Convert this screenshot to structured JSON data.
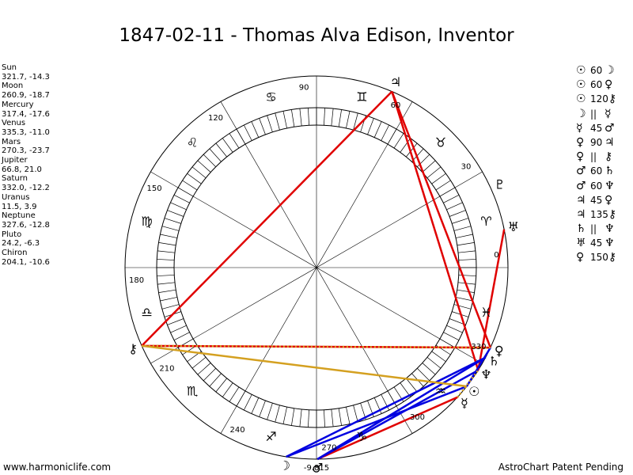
{
  "title": "1847-02-11 - Thomas Alva Edison, Inventor",
  "planets": [
    {
      "name": "Sun",
      "coord": "321.7, -14.3",
      "glyph": "☉",
      "lon": 321.7
    },
    {
      "name": "Moon",
      "coord": "260.9, -18.7",
      "glyph": "☽",
      "lon": 260.9
    },
    {
      "name": "Mercury",
      "coord": "317.4, -17.6",
      "glyph": "☿",
      "lon": 317.4
    },
    {
      "name": "Venus",
      "coord": "335.3, -11.0",
      "glyph": "♀",
      "lon": 335.3
    },
    {
      "name": "Mars",
      "coord": "270.3, -23.7",
      "glyph": "♂",
      "lon": 270.3
    },
    {
      "name": "Jupiter",
      "coord": "66.8, 21.0",
      "glyph": "♃",
      "lon": 66.8
    },
    {
      "name": "Saturn",
      "coord": "332.0, -12.2",
      "glyph": "♄",
      "lon": 332.0
    },
    {
      "name": "Uranus",
      "coord": "11.5, 3.9",
      "glyph": "♅",
      "lon": 11.5
    },
    {
      "name": "Neptune",
      "coord": "327.6, -12.8",
      "glyph": "♆",
      "lon": 327.6
    },
    {
      "name": "Pluto",
      "coord": "24.2, -6.3",
      "glyph": "♇",
      "lon": 24.2
    },
    {
      "name": "Chiron",
      "coord": "204.1, -10.6",
      "glyph": "⚷",
      "lon": 204.1
    }
  ],
  "aspects": [
    {
      "p1": "☉",
      "angle": "60",
      "p2": "☽"
    },
    {
      "p1": "☉",
      "angle": "60",
      "p2": "♀"
    },
    {
      "p1": "☉",
      "angle": "120",
      "p2": "⚷"
    },
    {
      "p1": "☽",
      "angle": "||",
      "p2": "☿"
    },
    {
      "p1": "☿",
      "angle": "45",
      "p2": "♂"
    },
    {
      "p1": "♀",
      "angle": "90",
      "p2": "♃"
    },
    {
      "p1": "♀",
      "angle": "||",
      "p2": "⚷"
    },
    {
      "p1": "♂",
      "angle": "60",
      "p2": "♄"
    },
    {
      "p1": "♂",
      "angle": "60",
      "p2": "♆"
    },
    {
      "p1": "♃",
      "angle": "45",
      "p2": "♀"
    },
    {
      "p1": "♃",
      "angle": "135",
      "p2": "⚷"
    },
    {
      "p1": "♄",
      "angle": "||",
      "p2": "♆"
    },
    {
      "p1": "♅",
      "angle": "45",
      "p2": "♆"
    },
    {
      "p1": "♀",
      "angle": "150",
      "p2": "⚷"
    }
  ],
  "degree_labels": [
    "0",
    "30",
    "60",
    "90",
    "120",
    "150",
    "180",
    "210",
    "240",
    "270",
    "300",
    "330"
  ],
  "sign_glyphs": [
    "♈",
    "♉",
    "♊",
    "♋",
    "♌",
    "♍",
    "♎",
    "♏",
    "♐",
    "♑",
    "♒",
    "♓"
  ],
  "extra_label": "-9.815",
  "chart_lines": [
    {
      "from": "Jupiter",
      "to": "Venus",
      "color": "#e00000"
    },
    {
      "from": "Jupiter",
      "to": "Chiron",
      "color": "#e00000"
    },
    {
      "from": "Jupiter",
      "to": "Neptune",
      "color": "#e00000"
    },
    {
      "from": "Venus",
      "to": "Chiron",
      "color": "#e00000"
    },
    {
      "from": "Uranus",
      "to": "Neptune",
      "color": "#e00000"
    },
    {
      "from": "Mercury",
      "to": "Mars",
      "color": "#e00000"
    },
    {
      "from": "Sun",
      "to": "Moon",
      "color": "#0000e0"
    },
    {
      "from": "Sun",
      "to": "Venus",
      "color": "#0000e0"
    },
    {
      "from": "Mars",
      "to": "Saturn",
      "color": "#0000e0"
    },
    {
      "from": "Mars",
      "to": "Neptune",
      "color": "#0000e0"
    },
    {
      "from": "Moon",
      "to": "Saturn",
      "color": "#0000e0"
    },
    {
      "from": "Sun",
      "to": "Chiron",
      "color": "#d4a020"
    },
    {
      "from": "Venus",
      "to": "Chiron",
      "color": "#d4a020",
      "dotted": true
    },
    {
      "from": "Mercury",
      "to": "Neptune",
      "color": "#d4a020",
      "dotted": true
    }
  ],
  "footer": {
    "left": "www.harmoniclife.com",
    "right": "AstroChart Patent Pending"
  }
}
